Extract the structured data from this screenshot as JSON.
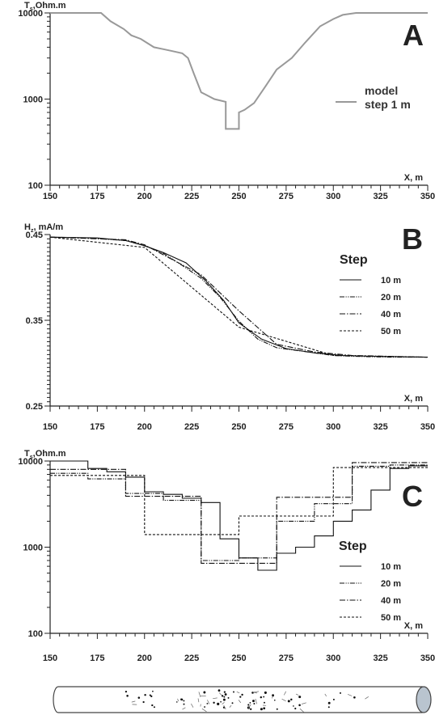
{
  "chart_data": [
    {
      "type": "line",
      "panel": "A",
      "ylabel": "Tₓ,Ohm.m",
      "ylabel_main": "T",
      "ylabel_sub": "s",
      "ylabel_rest": ",Ohm.m",
      "xlabel": "X, m",
      "y_scale": "log",
      "xlim": [
        150,
        350
      ],
      "ylim": [
        100,
        10000
      ],
      "x_ticks": [
        150,
        175,
        200,
        225,
        250,
        275,
        300,
        325,
        350
      ],
      "y_ticks": [
        100,
        1000,
        10000
      ],
      "legend": {
        "lines": [
          "model",
          "step 1 m"
        ],
        "position": "right"
      },
      "series": [
        {
          "name": "model step 1 m",
          "color": "#999999",
          "dash": "solid",
          "x": [
            150,
            177,
            182,
            189,
            193,
            198,
            205,
            210,
            215,
            220,
            223,
            226,
            230,
            237,
            243,
            243,
            250,
            250,
            253,
            258,
            264,
            270,
            278,
            285,
            293,
            300,
            305,
            312,
            350
          ],
          "y": [
            10000,
            10000,
            8000,
            6500,
            5500,
            5000,
            4000,
            3800,
            3600,
            3400,
            3000,
            2000,
            1200,
            1000,
            930,
            450,
            450,
            700,
            750,
            900,
            1400,
            2200,
            3000,
            4500,
            7000,
            8500,
            9500,
            10000,
            10000
          ]
        }
      ]
    },
    {
      "type": "line",
      "panel": "B",
      "ylabel": "Hₓ, mA/m",
      "ylabel_main": "H",
      "ylabel_sub": "z",
      "ylabel_rest": ", mA/m",
      "xlabel": "X, m",
      "xlim": [
        150,
        350
      ],
      "ylim": [
        0.25,
        0.45
      ],
      "x_ticks": [
        150,
        175,
        200,
        225,
        250,
        275,
        300,
        325,
        350
      ],
      "y_ticks": [
        0.25,
        0.35,
        0.45
      ],
      "y_tick_labels": [
        "0.25",
        "0.35",
        "0.45"
      ],
      "legend": {
        "title": "Step",
        "entries": [
          "10 m",
          "20 m",
          "40 m",
          "50 m"
        ],
        "position": "right"
      },
      "series": [
        {
          "name": "10 m",
          "dash": "solid",
          "x": [
            150,
            175,
            190,
            200,
            210,
            222,
            232,
            242,
            250,
            262,
            275,
            290,
            305,
            320,
            350
          ],
          "y": [
            0.447,
            0.446,
            0.443,
            0.437,
            0.429,
            0.417,
            0.397,
            0.373,
            0.347,
            0.328,
            0.317,
            0.312,
            0.309,
            0.308,
            0.307
          ]
        },
        {
          "name": "20 m",
          "dash": "dashdotdot",
          "x": [
            150,
            170,
            190,
            200,
            210,
            220,
            230,
            240,
            250,
            260,
            270,
            280,
            290,
            300,
            310,
            330,
            350
          ],
          "y": [
            0.447,
            0.446,
            0.443,
            0.437,
            0.428,
            0.414,
            0.399,
            0.377,
            0.349,
            0.328,
            0.318,
            0.315,
            0.312,
            0.309,
            0.308,
            0.307,
            0.307
          ]
        },
        {
          "name": "40 m",
          "dash": "dashdot",
          "x": [
            150,
            190,
            200,
            230,
            250,
            270,
            290,
            310,
            350
          ],
          "y": [
            0.447,
            0.444,
            0.438,
            0.403,
            0.361,
            0.322,
            0.313,
            0.309,
            0.307
          ]
        },
        {
          "name": "50 m",
          "dash": "dash",
          "x": [
            150,
            200,
            250,
            300,
            350
          ],
          "y": [
            0.447,
            0.435,
            0.342,
            0.309,
            0.307
          ]
        }
      ]
    },
    {
      "type": "line",
      "panel": "C",
      "ylabel": "Tₓ,Ohm.m",
      "ylabel_main": "T",
      "ylabel_sub": "s",
      "ylabel_rest": ",Ohm.m",
      "xlabel": "X, m",
      "y_scale": "log",
      "xlim": [
        150,
        350
      ],
      "ylim": [
        100,
        10000
      ],
      "x_ticks": [
        150,
        175,
        200,
        225,
        250,
        275,
        300,
        325,
        350
      ],
      "y_ticks": [
        100,
        1000,
        10000
      ],
      "legend": {
        "title": "Step",
        "entries": [
          "10 m",
          "20 m",
          "40 m",
          "50 m"
        ],
        "position": "right"
      },
      "series": [
        {
          "name": "10 m",
          "dash": "solid",
          "step": true,
          "edges": [
            150,
            170,
            180,
            190,
            200,
            210,
            220,
            230,
            240,
            250,
            260,
            270,
            280,
            290,
            300,
            310,
            320,
            330,
            340,
            350
          ],
          "values": [
            10000,
            8200,
            7500,
            6500,
            4400,
            4100,
            3700,
            3300,
            1250,
            750,
            540,
            850,
            1000,
            1350,
            2000,
            2700,
            4600,
            8200,
            8800
          ]
        },
        {
          "name": "20 m",
          "dash": "dashdotdot",
          "step": true,
          "edges": [
            150,
            170,
            190,
            210,
            230,
            250,
            270,
            290,
            310,
            330,
            350
          ],
          "values": [
            7200,
            6200,
            4200,
            3500,
            700,
            750,
            2000,
            3200,
            8700,
            9000
          ]
        },
        {
          "name": "40 m",
          "dash": "dashdot",
          "step": true,
          "edges": [
            150,
            190,
            230,
            270,
            310,
            350
          ],
          "values": [
            8000,
            3900,
            650,
            3800,
            9600
          ]
        },
        {
          "name": "50 m",
          "dash": "dash",
          "step": true,
          "edges": [
            150,
            200,
            250,
            300,
            350
          ],
          "values": [
            6800,
            1400,
            2300,
            8400
          ]
        }
      ]
    }
  ],
  "panel_labels": {
    "a": "A",
    "b": "B",
    "c": "C"
  }
}
